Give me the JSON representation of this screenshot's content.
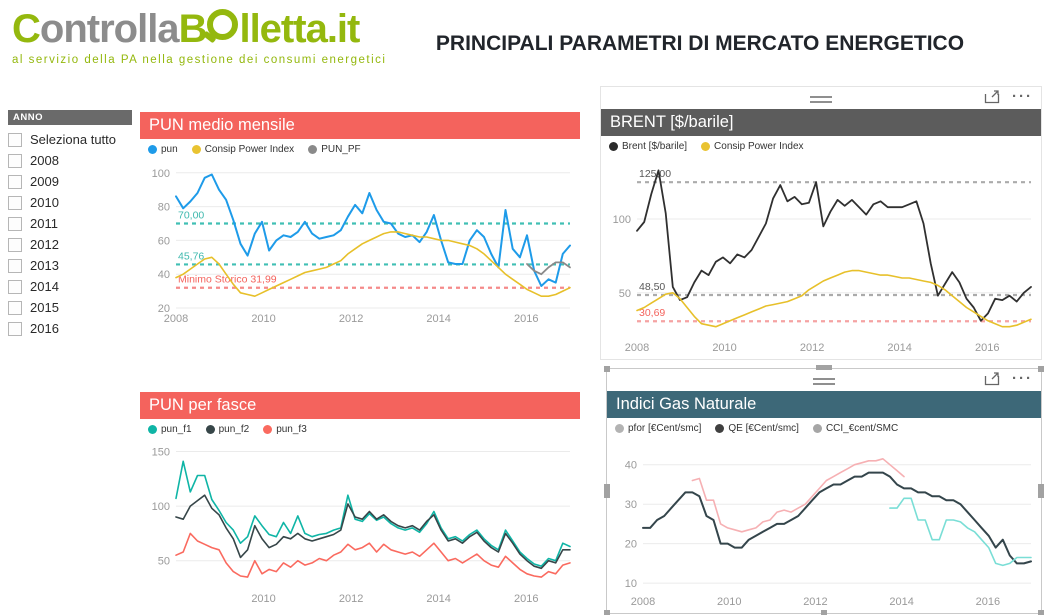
{
  "header": {
    "logo_c": "C",
    "logo_ontrolla": "ontrolla",
    "logo_b": "B",
    "logo_rest": "lletta.it",
    "tagline": "al servizio della PA nella gestione dei consumi energetici",
    "title": "PRINCIPALI PARAMETRI DI MERCATO ENERGETICO"
  },
  "sidebar": {
    "title": "ANNO",
    "items": [
      "Seleziona tutto",
      "2008",
      "2009",
      "2010",
      "2011",
      "2012",
      "2013",
      "2014",
      "2015",
      "2016"
    ]
  },
  "colors": {
    "accent_red": "#F4635D",
    "header_dark": "#5C5C5C",
    "header_slate": "#3D6878",
    "logo_green": "#94B80E",
    "logo_gray": "#8C8C8C",
    "ref_teal": "#41BFB4",
    "ref_red": "#F58A8A",
    "ref_gray": "#ABABAB"
  },
  "toolbar": {
    "more_options": "···"
  },
  "chart_data": [
    {
      "key": "pun",
      "type": "line",
      "title": "PUN medio mensile",
      "x_range": [
        2008,
        2017
      ],
      "x_ticks": [
        2008,
        2010,
        2012,
        2014,
        2016
      ],
      "y_range": [
        20,
        104
      ],
      "y_ticks": [
        20,
        40,
        60,
        80,
        100
      ],
      "legend": [
        {
          "label": "pun",
          "dot": "#1E9BE9"
        },
        {
          "label": "Consip Power Index",
          "dot": "#E9C331"
        },
        {
          "label": "PUN_PF",
          "dot": "#8A8A8A"
        }
      ],
      "ref_lines": [
        {
          "value": 70.0,
          "label": "70,00",
          "line": "#41BFB4",
          "label_color": "#3FB9AE"
        },
        {
          "value": 45.76,
          "label": "45,76",
          "line": "#41BFB4",
          "label_color": "#3FB9AE"
        },
        {
          "value": 31.99,
          "label": "Minimo Storico 31,99",
          "line": "#F58A8A",
          "label_color": "#F4635D"
        }
      ],
      "series": [
        {
          "name": "pun",
          "color": "#1E9BE9",
          "width": 2,
          "values": [
            86,
            79,
            83,
            88,
            97,
            99,
            90,
            84,
            72,
            58,
            51,
            64,
            71,
            54,
            60,
            63,
            62,
            65,
            71,
            64,
            61,
            62,
            63,
            66,
            74,
            81,
            76,
            88,
            78,
            71,
            70,
            64,
            62,
            63,
            59,
            65,
            75,
            60,
            47,
            46,
            46,
            60,
            66,
            62,
            52,
            44,
            78,
            55,
            50,
            63,
            42,
            33,
            37,
            35,
            52,
            57
          ]
        },
        {
          "name": "Consip Power Index",
          "color": "#E7C02A",
          "width": 1.6,
          "values": [
            38,
            40,
            43,
            46,
            49,
            50,
            46,
            40,
            34,
            29,
            28,
            27,
            29,
            31,
            33,
            35,
            37,
            39,
            41,
            42,
            43,
            44,
            46,
            48,
            52,
            55,
            58,
            60,
            62,
            64,
            65,
            65,
            64,
            63,
            62,
            62,
            61,
            60,
            60,
            59,
            58,
            57,
            55,
            52,
            48,
            44,
            40,
            37,
            34,
            31,
            29,
            27,
            27,
            28,
            30,
            32
          ]
        },
        {
          "name": "PUN_PF",
          "color": "#8A8A8A",
          "width": 1.8,
          "values": [
            null,
            null,
            null,
            null,
            null,
            null,
            null,
            null,
            null,
            null,
            null,
            null,
            null,
            null,
            null,
            null,
            null,
            null,
            null,
            null,
            null,
            null,
            null,
            null,
            null,
            null,
            null,
            null,
            null,
            null,
            null,
            null,
            null,
            null,
            null,
            null,
            null,
            null,
            null,
            null,
            null,
            null,
            null,
            null,
            null,
            null,
            null,
            null,
            null,
            46,
            42,
            40,
            44,
            47,
            47,
            44
          ]
        }
      ]
    },
    {
      "key": "brent",
      "type": "line",
      "title": "BRENT [$/barile]",
      "x_range": [
        2008,
        2017
      ],
      "x_ticks": [
        2008,
        2010,
        2012,
        2014,
        2016
      ],
      "y_range": [
        20,
        138
      ],
      "y_ticks": [
        50,
        100
      ],
      "legend": [
        {
          "label": "Brent [$/barile]",
          "dot": "#2B2B2B"
        },
        {
          "label": "Consip Power Index",
          "dot": "#E9C331"
        }
      ],
      "ref_lines": [
        {
          "value": 125.0,
          "label": "125,00",
          "line": "#ABABAB",
          "label_color": "#595959"
        },
        {
          "value": 48.5,
          "label": "48,50",
          "line": "#ABABAB",
          "label_color": "#595959"
        },
        {
          "value": 30.69,
          "label": "30,69",
          "line": "#F5A3A3",
          "label_color": "#F4635D"
        }
      ],
      "series": [
        {
          "name": "Brent [$/barile]",
          "color": "#303030",
          "width": 1.8,
          "values": [
            92,
            98,
            117,
            133,
            104,
            54,
            45,
            47,
            57,
            65,
            62,
            71,
            74,
            70,
            76,
            74,
            79,
            88,
            97,
            114,
            123,
            112,
            115,
            110,
            111,
            125,
            95,
            105,
            113,
            109,
            113,
            108,
            103,
            110,
            112,
            108,
            108,
            108,
            110,
            112,
            97,
            70,
            48,
            56,
            64,
            57,
            46,
            40,
            31,
            36,
            46,
            45,
            48,
            44,
            50,
            54
          ]
        },
        {
          "name": "Consip Power Index",
          "color": "#E7C02A",
          "width": 1.6,
          "values": [
            38,
            40,
            43,
            46,
            49,
            50,
            46,
            40,
            34,
            29,
            28,
            27,
            29,
            31,
            33,
            35,
            37,
            39,
            41,
            42,
            43,
            44,
            46,
            48,
            52,
            55,
            58,
            60,
            62,
            64,
            65,
            65,
            64,
            63,
            62,
            62,
            61,
            60,
            60,
            59,
            58,
            57,
            55,
            52,
            48,
            44,
            40,
            37,
            34,
            31,
            29,
            27,
            27,
            28,
            30,
            32
          ]
        }
      ]
    },
    {
      "key": "fasce",
      "type": "line",
      "title": "PUN per fasce",
      "x_range": [
        2008,
        2017
      ],
      "x_ticks": [
        2010,
        2012,
        2014,
        2016
      ],
      "y_range": [
        25,
        155
      ],
      "y_ticks": [
        50,
        100,
        150
      ],
      "legend": [
        {
          "label": "pun_f1",
          "dot": "#0FB5A6"
        },
        {
          "label": "pun_f2",
          "dot": "#374649"
        },
        {
          "label": "pun_f3",
          "dot": "#FA6A5F"
        }
      ],
      "ref_lines": [],
      "series": [
        {
          "name": "pun_f1",
          "color": "#0FB5A6",
          "width": 1.6,
          "values": [
            107,
            141,
            113,
            128,
            128,
            106,
            96,
            85,
            78,
            66,
            72,
            91,
            82,
            74,
            72,
            85,
            75,
            91,
            75,
            72,
            74,
            75,
            78,
            80,
            110,
            88,
            86,
            93,
            87,
            90,
            84,
            80,
            78,
            80,
            76,
            84,
            95,
            80,
            70,
            72,
            68,
            74,
            78,
            70,
            64,
            60,
            78,
            68,
            58,
            52,
            47,
            45,
            52,
            50,
            66,
            63
          ]
        },
        {
          "name": "pun_f2",
          "color": "#374649",
          "width": 1.6,
          "values": [
            90,
            88,
            100,
            105,
            110,
            98,
            92,
            80,
            70,
            53,
            60,
            82,
            70,
            62,
            65,
            72,
            70,
            75,
            70,
            68,
            70,
            72,
            74,
            78,
            102,
            90,
            88,
            95,
            88,
            92,
            86,
            82,
            80,
            82,
            78,
            86,
            92,
            78,
            68,
            70,
            66,
            72,
            76,
            68,
            62,
            58,
            75,
            66,
            56,
            50,
            45,
            43,
            50,
            48,
            60,
            60
          ]
        },
        {
          "name": "pun_f3",
          "color": "#FA6A5F",
          "width": 1.6,
          "values": [
            55,
            58,
            75,
            68,
            65,
            62,
            60,
            48,
            40,
            36,
            35,
            50,
            38,
            42,
            40,
            48,
            44,
            50,
            46,
            48,
            52,
            50,
            55,
            58,
            65,
            60,
            62,
            66,
            58,
            65,
            60,
            58,
            56,
            58,
            54,
            60,
            66,
            58,
            50,
            52,
            48,
            52,
            56,
            50,
            46,
            44,
            54,
            48,
            42,
            38,
            36,
            35,
            40,
            38,
            46,
            48
          ]
        }
      ]
    },
    {
      "key": "gas",
      "type": "line",
      "title": "Indici Gas Naturale",
      "x_range": [
        2008,
        2017
      ],
      "x_ticks": [
        2008,
        2010,
        2012,
        2014,
        2016
      ],
      "y_range": [
        8,
        45
      ],
      "y_ticks": [
        10,
        20,
        30,
        40
      ],
      "legend": [
        {
          "label": "pfor [€Cent/smc]",
          "dot": "#B3B3B3"
        },
        {
          "label": "QE [€Cent/smc]",
          "dot": "#404040"
        },
        {
          "label": "CCI_€cent/SMC",
          "dot": "#A6A6A6"
        }
      ],
      "ref_lines": [],
      "series": [
        {
          "name": "pfor [€Cent/smc]",
          "color": "#F6B0B3",
          "width": 1.6,
          "values": [
            null,
            null,
            null,
            null,
            null,
            null,
            null,
            36,
            36.5,
            31,
            31,
            25,
            24,
            23.5,
            23,
            23.5,
            24,
            25.5,
            26,
            28,
            28.5,
            28,
            29,
            30,
            32,
            34,
            36,
            37,
            38,
            39,
            40,
            40.5,
            41,
            41,
            41.5,
            40,
            38.5,
            37,
            null,
            null,
            null,
            null,
            null,
            null,
            null,
            null,
            null,
            null,
            null,
            null,
            null,
            null,
            null,
            null,
            null,
            null
          ]
        },
        {
          "name": "QE [€Cent/smc]",
          "color": "#34454B",
          "width": 2,
          "values": [
            24,
            24,
            26,
            27,
            29,
            31,
            33,
            33,
            32,
            27,
            26,
            20,
            20,
            19,
            19,
            21,
            22,
            23,
            24,
            25,
            25,
            26,
            27,
            29,
            31,
            33,
            34,
            35,
            35,
            36,
            37,
            37,
            38,
            38,
            38,
            37,
            35,
            34,
            34,
            33,
            33,
            32,
            32,
            31,
            31,
            30,
            28,
            26,
            24,
            22,
            19,
            21,
            17,
            15,
            15,
            15.5
          ]
        },
        {
          "name": "CCI_€cent/SMC",
          "color": "#7ADED6",
          "width": 1.6,
          "values": [
            null,
            null,
            null,
            null,
            null,
            null,
            null,
            null,
            null,
            null,
            null,
            null,
            null,
            null,
            null,
            null,
            null,
            null,
            null,
            null,
            null,
            null,
            null,
            null,
            null,
            null,
            null,
            null,
            null,
            null,
            null,
            null,
            null,
            null,
            null,
            29,
            29,
            31.5,
            31.5,
            26,
            26,
            21,
            21,
            26,
            26,
            25.5,
            24,
            23,
            21,
            19,
            15,
            14.5,
            15,
            16.5,
            16.5,
            16.5
          ]
        }
      ]
    }
  ]
}
